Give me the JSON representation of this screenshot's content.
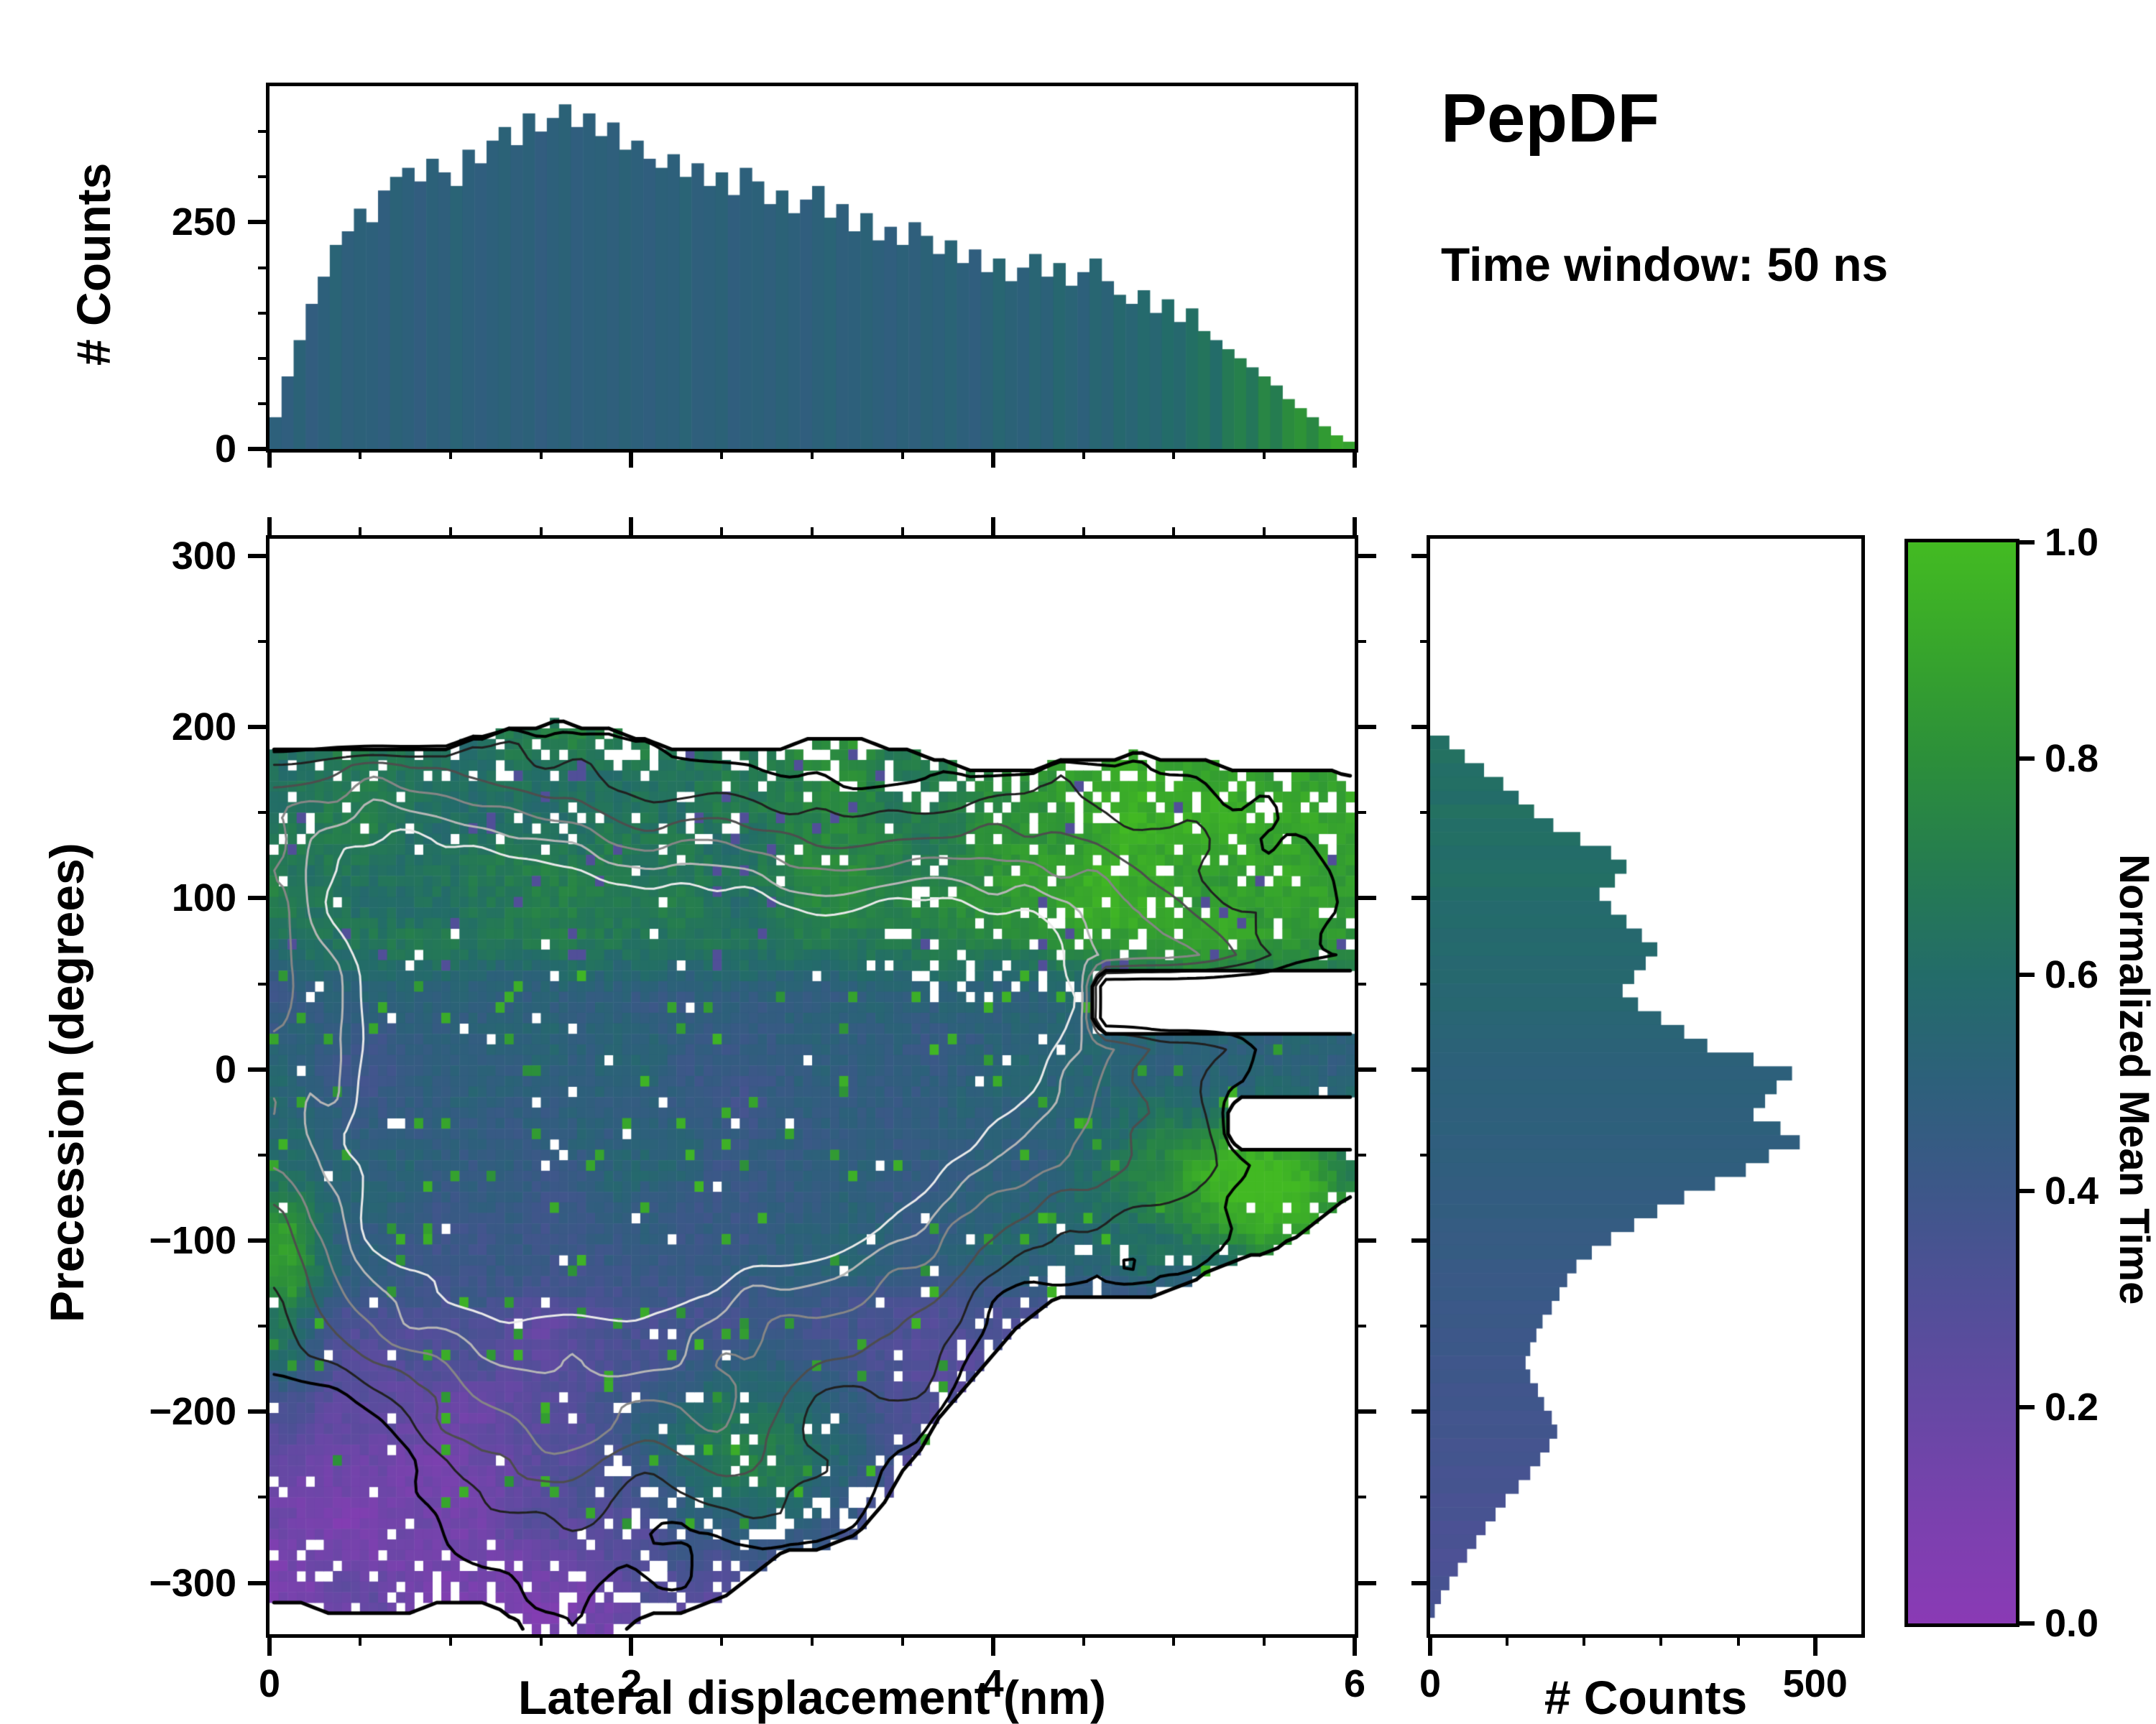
{
  "title": {
    "main": "PepDF",
    "subtitle": "Time window: 50 ns"
  },
  "labels": {
    "top_ylabel": "# Counts",
    "main_xlabel": "Lateral displacement (nm)",
    "main_ylabel": "Precession (degrees)",
    "right_xlabel": "# Counts",
    "colorbar_label": "Normalized Mean Time"
  },
  "colormap": {
    "stops": [
      [
        0.0,
        "#8a3ab5"
      ],
      [
        0.1,
        "#7a41ae"
      ],
      [
        0.2,
        "#6648a4"
      ],
      [
        0.3,
        "#514f98"
      ],
      [
        0.4,
        "#3d5789"
      ],
      [
        0.5,
        "#2d607b"
      ],
      [
        0.6,
        "#236c69"
      ],
      [
        0.7,
        "#257c50"
      ],
      [
        0.8,
        "#2c8f3a"
      ],
      [
        0.9,
        "#37a52c"
      ],
      [
        1.0,
        "#43bb22"
      ]
    ]
  },
  "axes": {
    "main": {
      "x_range": [
        0,
        6
      ],
      "y_range": [
        -330,
        310
      ],
      "x_major": [
        {
          "v": 0,
          "label": "0"
        },
        {
          "v": 2,
          "label": "2"
        },
        {
          "v": 4,
          "label": "4"
        },
        {
          "v": 6,
          "label": "6"
        }
      ],
      "x_minor": [
        0.5,
        1,
        1.5,
        2.5,
        3,
        3.5,
        4.5,
        5,
        5.5
      ],
      "y_major": [
        {
          "v": 300,
          "label": "300"
        },
        {
          "v": 200,
          "label": "200"
        },
        {
          "v": 100,
          "label": "100"
        },
        {
          "v": 0,
          "label": "0"
        },
        {
          "v": -100,
          "label": "−100"
        },
        {
          "v": -200,
          "label": "−200"
        },
        {
          "v": -300,
          "label": "−300"
        }
      ],
      "y_minor": [
        250,
        150,
        50,
        -50,
        -150,
        -250
      ]
    },
    "top": {
      "y_range": [
        0,
        400
      ],
      "y_major": [
        {
          "v": 250,
          "label": "250"
        },
        {
          "v": 0,
          "label": "0"
        }
      ],
      "y_minor": [
        50,
        100,
        150,
        200,
        300,
        350
      ]
    },
    "right": {
      "x_range": [
        0,
        560
      ],
      "x_major": [
        {
          "v": 0,
          "label": "0"
        },
        {
          "v": 500,
          "label": "500"
        }
      ],
      "x_minor": [
        100,
        200,
        300,
        400
      ]
    },
    "colorbar": {
      "range": [
        0,
        1
      ],
      "ticks": [
        {
          "v": 0,
          "label": "0.0"
        },
        {
          "v": 0.2,
          "label": "0.2"
        },
        {
          "v": 0.4,
          "label": "0.4"
        },
        {
          "v": 0.6,
          "label": "0.6"
        },
        {
          "v": 0.8,
          "label": "0.8"
        },
        {
          "v": 1,
          "label": "1.0"
        }
      ]
    }
  },
  "chart_data": [
    {
      "id": "top_histogram",
      "type": "bar",
      "xlabel": "Lateral displacement (nm)",
      "ylabel": "# Counts",
      "x_range": [
        0,
        6
      ],
      "y_max": 400,
      "heights": [
        35,
        80,
        120,
        160,
        190,
        225,
        240,
        265,
        250,
        285,
        300,
        310,
        295,
        320,
        305,
        290,
        330,
        315,
        340,
        355,
        335,
        370,
        350,
        365,
        380,
        355,
        370,
        345,
        360,
        330,
        340,
        320,
        310,
        325,
        300,
        315,
        290,
        305,
        280,
        310,
        295,
        270,
        285,
        260,
        275,
        290,
        255,
        270,
        240,
        260,
        230,
        245,
        225,
        250,
        235,
        215,
        230,
        205,
        220,
        195,
        210,
        185,
        200,
        215,
        190,
        205,
        180,
        195,
        210,
        185,
        170,
        160,
        175,
        150,
        165,
        140,
        155,
        130,
        120,
        110,
        100,
        90,
        80,
        70,
        55,
        45,
        35,
        25,
        15,
        8
      ],
      "mean_time_values": [
        0.5,
        0.48,
        0.52,
        0.47,
        0.5,
        0.53,
        0.49,
        0.51,
        0.5,
        0.48,
        0.52,
        0.5,
        0.47,
        0.51,
        0.49,
        0.53,
        0.5,
        0.48,
        0.5,
        0.52,
        0.49,
        0.51,
        0.47,
        0.5,
        0.52,
        0.48,
        0.5,
        0.51,
        0.49,
        0.52,
        0.5,
        0.48,
        0.51,
        0.5,
        0.53,
        0.49,
        0.5,
        0.52,
        0.48,
        0.5,
        0.51,
        0.49,
        0.52,
        0.5,
        0.48,
        0.51,
        0.53,
        0.49,
        0.5,
        0.52,
        0.5,
        0.48,
        0.51,
        0.49,
        0.52,
        0.5,
        0.53,
        0.5,
        0.48,
        0.51,
        0.55,
        0.52,
        0.5,
        0.54,
        0.51,
        0.56,
        0.53,
        0.5,
        0.55,
        0.52,
        0.57,
        0.54,
        0.58,
        0.55,
        0.6,
        0.57,
        0.62,
        0.65,
        0.6,
        0.68,
        0.72,
        0.66,
        0.75,
        0.7,
        0.78,
        0.82,
        0.76,
        0.85,
        0.9,
        0.88
      ]
    },
    {
      "id": "right_histogram",
      "type": "bar-horizontal",
      "xlabel": "# Counts",
      "x_max": 560,
      "y_start": 195,
      "y_step": 8.05,
      "heights": [
        25,
        45,
        70,
        95,
        115,
        135,
        160,
        195,
        235,
        255,
        240,
        220,
        235,
        255,
        275,
        295,
        280,
        265,
        250,
        270,
        300,
        330,
        360,
        420,
        470,
        450,
        435,
        420,
        455,
        480,
        440,
        410,
        370,
        330,
        295,
        265,
        235,
        210,
        190,
        178,
        168,
        158,
        146,
        138,
        130,
        124,
        130,
        140,
        148,
        158,
        165,
        155,
        143,
        130,
        115,
        98,
        85,
        72,
        60,
        48,
        36,
        25,
        14,
        6
      ],
      "mean_time_values": [
        0.62,
        0.63,
        0.61,
        0.62,
        0.6,
        0.63,
        0.61,
        0.62,
        0.6,
        0.61,
        0.62,
        0.6,
        0.58,
        0.59,
        0.57,
        0.58,
        0.56,
        0.57,
        0.55,
        0.56,
        0.54,
        0.53,
        0.52,
        0.51,
        0.5,
        0.51,
        0.5,
        0.49,
        0.5,
        0.48,
        0.49,
        0.48,
        0.47,
        0.46,
        0.47,
        0.45,
        0.44,
        0.45,
        0.43,
        0.42,
        0.43,
        0.41,
        0.42,
        0.4,
        0.41,
        0.39,
        0.4,
        0.38,
        0.39,
        0.37,
        0.38,
        0.36,
        0.37,
        0.35,
        0.36,
        0.34,
        0.35,
        0.33,
        0.34,
        0.32,
        0.33,
        0.35,
        0.34,
        0.36
      ]
    },
    {
      "id": "joint_heatmap",
      "type": "heatmap",
      "xlabel": "Lateral displacement (nm)",
      "ylabel": "Precession (degrees)",
      "colorbar": "Normalized Mean Time",
      "x_range": [
        0,
        6
      ],
      "y_range": [
        -330,
        310
      ],
      "grid": {
        "nx": 120,
        "ny": 104
      },
      "seed": 1337,
      "envelope": {
        "y_top": 186,
        "top_wiggle": 20,
        "bottom_points": [
          [
            0,
            -312
          ],
          [
            1.0,
            -318
          ],
          [
            2.6,
            -318
          ],
          [
            3.2,
            -268
          ],
          [
            4.3,
            -135
          ],
          [
            5.2,
            -108
          ],
          [
            6,
            -96
          ]
        ],
        "bottom_wiggle": 24
      },
      "gaps": [
        {
          "x0": 4.55,
          "x1": 6,
          "y0": 22,
          "y1": 58
        },
        {
          "x0": 5.3,
          "x1": 6,
          "y0": -48,
          "y1": -18
        }
      ],
      "value_field": {
        "noise_amp": 0.12,
        "bands": {
          "top": {
            "base": 0.6,
            "x_slope": 0.14,
            "y_gain": 0.05
          },
          "mid": {
            "base": 0.47
          },
          "low": {
            "base": 0.3,
            "fall": 0.16
          },
          "edges": {
            "top_full": 75,
            "top_mix": 45,
            "low_mix": -115,
            "low_full": -145
          }
        },
        "green_blobs": [
          {
            "x": 2.65,
            "y": -235,
            "sx": 0.5,
            "sy": 42,
            "a": 0.5
          },
          {
            "x": 5.45,
            "y": -70,
            "sx": 0.45,
            "sy": 30,
            "a": 0.5
          },
          {
            "x": 0.08,
            "y": -120,
            "sx": 0.15,
            "sy": 55,
            "a": 0.35
          },
          {
            "x": 5.3,
            "y": 130,
            "sx": 0.9,
            "sy": 70,
            "a": 0.18
          }
        ],
        "speckle_green_p": 0.03,
        "speckle_dark_p": 0.025
      },
      "holes": {
        "base_p": 0.015,
        "green_area_p": 0.12,
        "top_p": 0.06,
        "bottom_patch_p": 0.09,
        "deep_bottom_extra": 0.05,
        "edge_extra": 0.16,
        "edge_band": 28
      },
      "contours": {
        "noise_amp": 0.22,
        "gaussians": [
          [
            1.5,
            30,
            1.0,
            85,
            0.85
          ],
          [
            2.7,
            -35,
            1.1,
            75,
            0.9
          ],
          [
            1.0,
            -75,
            0.7,
            60,
            0.75
          ],
          [
            3.6,
            30,
            0.9,
            70,
            0.6
          ],
          [
            2.0,
            -205,
            0.9,
            55,
            0.5
          ],
          [
            0.8,
            120,
            0.8,
            55,
            0.5
          ],
          [
            4.6,
            90,
            0.9,
            60,
            0.45
          ]
        ],
        "levels": [
          [
            0.16,
            "#000000",
            4
          ],
          [
            0.3,
            "#202020",
            3
          ],
          [
            0.44,
            "#4d4d4d",
            3
          ],
          [
            0.58,
            "#868686",
            3
          ],
          [
            0.72,
            "#b6b6b6",
            3
          ],
          [
            0.84,
            "#e9e9e9",
            3
          ]
        ],
        "boundary_color": "#000000",
        "boundary_width": 5
      }
    }
  ]
}
